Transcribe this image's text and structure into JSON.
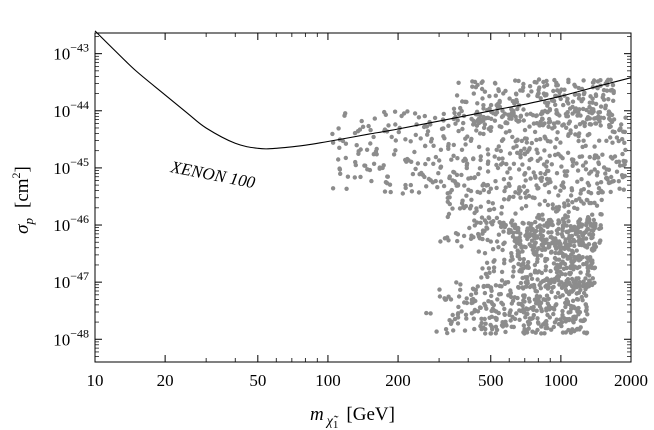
{
  "chart_data": {
    "type": "scatter",
    "title": "",
    "xlabel": "m χ̃1 [GeV]",
    "ylabel": "σp [cm²]",
    "xscale": "log",
    "yscale": "log",
    "xlim": [
      10,
      2000
    ],
    "ylim": [
      4e-49,
      2.3e-43
    ],
    "x_ticks": [
      10,
      20,
      50,
      100,
      200,
      500,
      1000,
      2000
    ],
    "x_tick_labels": [
      "10",
      "20",
      "50",
      "100",
      "200",
      "500",
      "1000",
      "2000"
    ],
    "y_ticks": [
      1e-43,
      1e-44,
      1e-45,
      1e-46,
      1e-47,
      1e-48
    ],
    "y_exponents": [
      "−43",
      "−44",
      "−45",
      "−46",
      "−47",
      "−48"
    ],
    "grid": false,
    "limit_curve": {
      "name": "XENON 100",
      "x": [
        10,
        12,
        15,
        20,
        25,
        30,
        40,
        50,
        60,
        80,
        100,
        150,
        200,
        300,
        500,
        700,
        1000,
        1500,
        2000
      ],
      "y": [
        2.5e-43,
        1.2e-43,
        5e-44,
        1.9e-44,
        9e-45,
        5e-45,
        2.7e-45,
        2.2e-45,
        2.2e-45,
        2.5e-45,
        2.9e-45,
        3.9e-45,
        4.8e-45,
        6.6e-45,
        1e-44,
        1.3e-44,
        1.8e-44,
        2.8e-44,
        3.8e-44
      ]
    },
    "scatter_series": {
      "name": "model points",
      "color": "#8c8c8c",
      "regions": [
        {
          "x_range": [
            103,
            1900
          ],
          "log_y_range": [
            -45.45,
            -44.0
          ],
          "count": 480
        },
        {
          "x_range": [
            340,
            1700
          ],
          "log_y_range": [
            -44.3,
            -43.45
          ],
          "count": 260
        },
        {
          "x_range": [
            300,
            1500
          ],
          "log_y_range": [
            -46.4,
            -45.3
          ],
          "count": 200
        },
        {
          "x_range": [
            420,
            1400
          ],
          "log_y_range": [
            -47.1,
            -45.9
          ],
          "count": 420
        },
        {
          "x_range": [
            250,
            1300
          ],
          "log_y_range": [
            -47.9,
            -47.0
          ],
          "count": 330
        }
      ]
    }
  }
}
